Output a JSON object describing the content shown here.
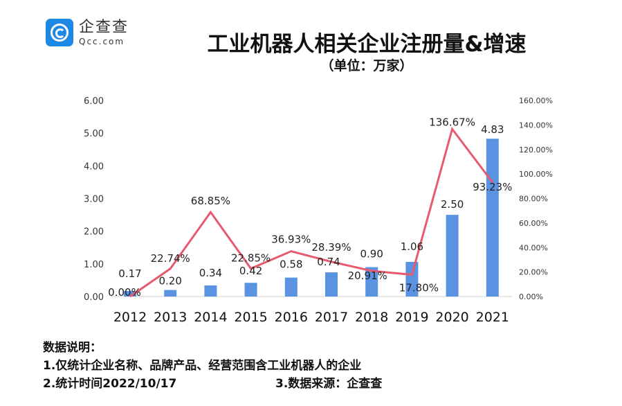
{
  "logo": {
    "cn": "企查查",
    "en": "Qcc.com",
    "color": "#1e88e5"
  },
  "title": "工业机器人相关企业注册量&增速",
  "subtitle": "（单位：万家）",
  "chart_data": {
    "type": "bar+line",
    "categories": [
      "2012",
      "2013",
      "2014",
      "2015",
      "2016",
      "2017",
      "2018",
      "2019",
      "2020",
      "2021"
    ],
    "series": [
      {
        "type": "bar",
        "axis": "left",
        "color": "#5b93e3",
        "values": [
          0.17,
          0.2,
          0.34,
          0.42,
          0.58,
          0.74,
          0.9,
          1.06,
          2.5,
          4.83
        ],
        "labels": [
          "0.17",
          "0.20",
          "0.34",
          "0.42",
          "0.58",
          "0.74",
          "0.90",
          "1.06",
          "2.50",
          "4.83"
        ]
      },
      {
        "type": "line",
        "axis": "right",
        "color": "#e8596e",
        "values": [
          0.0,
          22.74,
          68.85,
          22.85,
          36.93,
          28.39,
          20.91,
          17.8,
          136.67,
          93.23
        ],
        "labels": [
          "0.00%",
          "22.74%",
          "68.85%",
          "22.85%",
          "36.93%",
          "28.39%",
          "20.91%",
          "17.80%",
          "136.67%",
          "93.23%"
        ]
      }
    ],
    "left_axis": {
      "ylim": [
        0,
        6
      ],
      "ticks": [
        "0.00",
        "1.00",
        "2.00",
        "3.00",
        "4.00",
        "5.00",
        "6.00"
      ]
    },
    "right_axis": {
      "ylim": [
        0,
        160
      ],
      "ticks": [
        "0.00%",
        "20.00%",
        "40.00%",
        "60.00%",
        "80.00%",
        "100.00%",
        "120.00%",
        "140.00%",
        "160.00%"
      ]
    },
    "grid": false
  },
  "notes": {
    "heading": "数据说明：",
    "line1": "1.仅统计企业名称、品牌产品、经营范围含工业机器人的企业",
    "line2": "2.统计时间2022/10/17",
    "line3": "3.数据来源：企查查"
  }
}
